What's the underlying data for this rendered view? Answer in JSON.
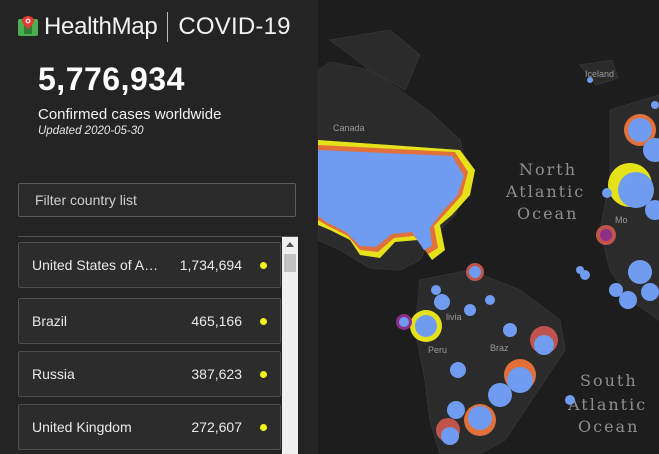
{
  "brand": {
    "name": "HealthMap",
    "subtitle": "COVID-19"
  },
  "summary": {
    "total": "5,776,934",
    "label": "Confirmed cases worldwide",
    "updated": "Updated 2020-05-30"
  },
  "filter": {
    "placeholder": "Filter country list",
    "value": ""
  },
  "countries": [
    {
      "name": "United States of America",
      "count": "1,734,694",
      "dot_color": "#f3f51a"
    },
    {
      "name": "Brazil",
      "count": "465,166",
      "dot_color": "#f3f51a"
    },
    {
      "name": "Russia",
      "count": "387,623",
      "dot_color": "#f3f51a"
    },
    {
      "name": "United Kingdom",
      "count": "272,607",
      "dot_color": "#f3f51a"
    }
  ],
  "map": {
    "labels": {
      "canada": "Canada",
      "iceland": "Iceland",
      "north_atlantic_1": "North",
      "north_atlantic_2": "Atlantic",
      "north_atlantic_3": "Ocean",
      "south_atlantic_1": "South",
      "south_atlantic_2": "Atlantic",
      "south_atlantic_3": "Ocean",
      "peru": "Peru",
      "brazil": "Braz",
      "bolivia": "livia",
      "morocco": "Mo"
    },
    "colors": {
      "land": "#2b2b2b",
      "ocean": "#1d1d1d",
      "cluster": "#6f9cf0",
      "ring_yellow": "#e6e21a",
      "ring_orange": "#e2703a",
      "ring_purple": "#8d2f86"
    }
  }
}
